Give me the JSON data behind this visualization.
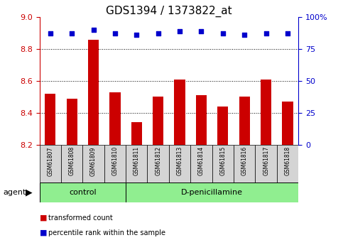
{
  "title": "GDS1394 / 1373822_at",
  "samples": [
    "GSM61807",
    "GSM61808",
    "GSM61809",
    "GSM61810",
    "GSM61811",
    "GSM61812",
    "GSM61813",
    "GSM61814",
    "GSM61815",
    "GSM61816",
    "GSM61817",
    "GSM61818"
  ],
  "transformed_count": [
    8.52,
    8.49,
    8.86,
    8.53,
    8.34,
    8.5,
    8.61,
    8.51,
    8.44,
    8.5,
    8.61,
    8.47
  ],
  "percentile_rank": [
    87,
    87,
    90,
    87,
    86,
    87,
    89,
    89,
    87,
    86,
    87,
    87
  ],
  "ylim_left": [
    8.2,
    9.0
  ],
  "ylim_right": [
    0,
    100
  ],
  "yticks_left": [
    8.2,
    8.4,
    8.6,
    8.8,
    9.0
  ],
  "yticks_right": [
    0,
    25,
    50,
    75,
    100
  ],
  "bar_color": "#cc0000",
  "dot_color": "#0000cc",
  "control_samples": 4,
  "control_label": "control",
  "treatment_label": "D-penicillamine",
  "agent_label": "agent",
  "legend_bar_label": "transformed count",
  "legend_dot_label": "percentile rank within the sample",
  "title_fontsize": 11,
  "tick_fontsize": 8,
  "bar_width": 0.5,
  "plot_bg_color": "#ffffff",
  "sample_box_bg": "#d4d4d4",
  "group_bg": "#90ee90",
  "left_axis_color": "#cc0000",
  "right_axis_color": "#0000cc",
  "grid_yticks": [
    8.4,
    8.6,
    8.8
  ]
}
